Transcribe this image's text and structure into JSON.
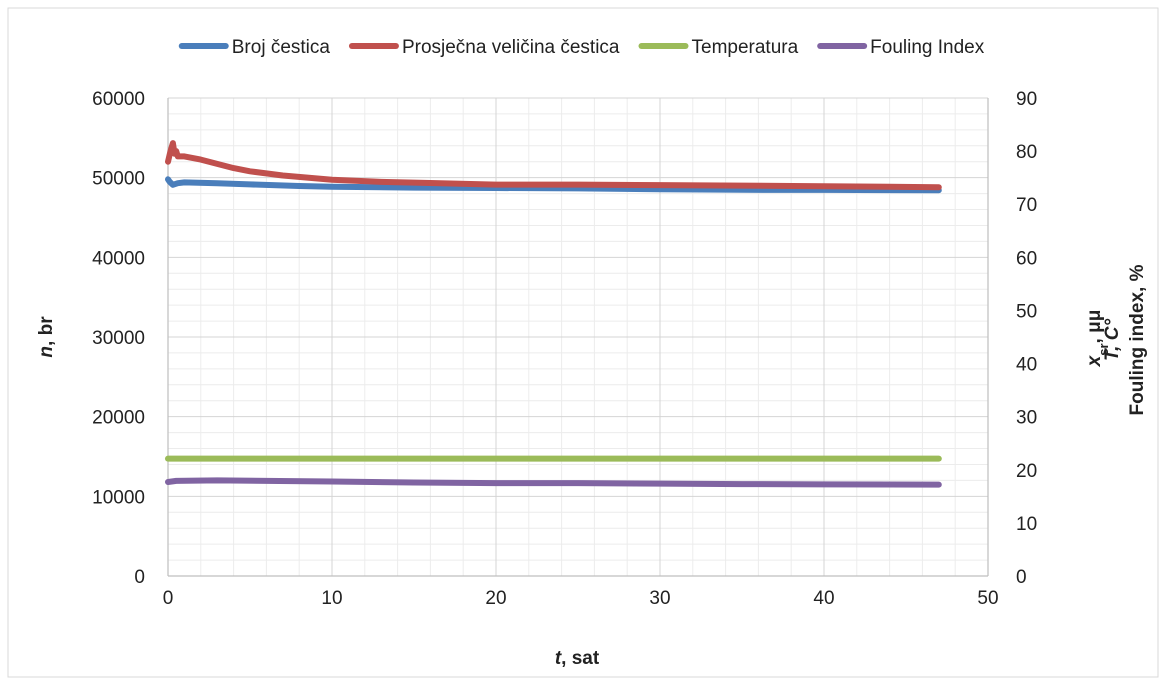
{
  "chart_data": {
    "type": "line",
    "x_axis": {
      "title_var": "t",
      "title_rest": ", sat",
      "min": 0,
      "max": 50,
      "ticks": [
        0,
        10,
        20,
        30,
        40,
        50
      ]
    },
    "y_left_axis": {
      "title_var": "n",
      "title_rest": ", br",
      "min": 0,
      "max": 60000,
      "ticks": [
        0,
        10000,
        20000,
        30000,
        40000,
        50000,
        60000
      ]
    },
    "y_right_axis": {
      "title_line1_var": "x",
      "title_line1_sub": "sr",
      "title_line1_rest": ", μμ",
      "title_line2": "T, C°",
      "title_line3": "Fouling index, %",
      "min": 0,
      "max": 90,
      "ticks": [
        0,
        10,
        20,
        30,
        40,
        50,
        60,
        70,
        80,
        90
      ]
    },
    "grid": true,
    "legend_position": "top",
    "series": [
      {
        "name": "Broj čestica",
        "color": "#4a7ebb",
        "axis": "left",
        "points": [
          [
            0,
            49800
          ],
          [
            0.1,
            49500
          ],
          [
            0.3,
            49100
          ],
          [
            0.6,
            49300
          ],
          [
            1,
            49400
          ],
          [
            3,
            49300
          ],
          [
            5,
            49150
          ],
          [
            8,
            48950
          ],
          [
            10,
            48850
          ],
          [
            15,
            48750
          ],
          [
            20,
            48700
          ],
          [
            25,
            48650
          ],
          [
            30,
            48550
          ],
          [
            35,
            48480
          ],
          [
            40,
            48470
          ],
          [
            47,
            48420
          ]
        ]
      },
      {
        "name": "Prosječna veličina čestica",
        "color": "#c0504d",
        "axis": "right",
        "points": [
          [
            0,
            78
          ],
          [
            0.15,
            80
          ],
          [
            0.3,
            81.5
          ],
          [
            0.4,
            79.5
          ],
          [
            0.5,
            80
          ],
          [
            0.6,
            79
          ],
          [
            1,
            79
          ],
          [
            2,
            78.4
          ],
          [
            3,
            77.6
          ],
          [
            4,
            76.8
          ],
          [
            5,
            76.2
          ],
          [
            7,
            75.4
          ],
          [
            10,
            74.6
          ],
          [
            13,
            74.2
          ],
          [
            16,
            74
          ],
          [
            20,
            73.7
          ],
          [
            25,
            73.7
          ],
          [
            30,
            73.6
          ],
          [
            35,
            73.5
          ],
          [
            40,
            73.4
          ],
          [
            47,
            73.2
          ]
        ]
      },
      {
        "name": "Temperatura",
        "color": "#9bbb59",
        "axis": "right",
        "points": [
          [
            0,
            22.1
          ],
          [
            47,
            22.1
          ]
        ]
      },
      {
        "name": "Fouling Index",
        "color": "#8064a2",
        "axis": "right",
        "points": [
          [
            0,
            17.7
          ],
          [
            0.5,
            17.9
          ],
          [
            3,
            18
          ],
          [
            6,
            17.9
          ],
          [
            10,
            17.8
          ],
          [
            15,
            17.6
          ],
          [
            20,
            17.5
          ],
          [
            25,
            17.5
          ],
          [
            30,
            17.4
          ],
          [
            35,
            17.3
          ],
          [
            40,
            17.25
          ],
          [
            47,
            17.2
          ]
        ]
      }
    ]
  }
}
